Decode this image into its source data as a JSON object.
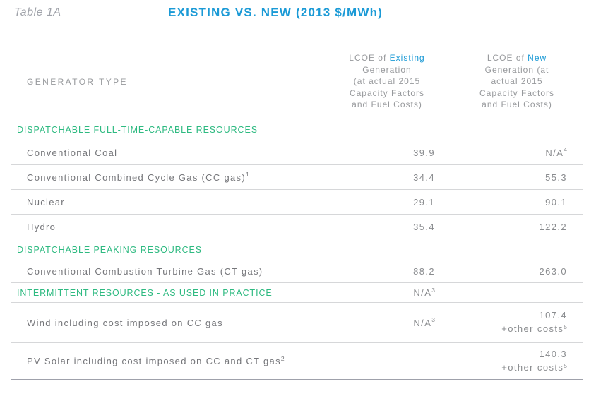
{
  "header": {
    "table_label": "Table 1A",
    "title": "EXISTING VS. NEW (2013 $/MWh)"
  },
  "table": {
    "columns": {
      "generator": "GENERATOR TYPE",
      "existing": {
        "prefix": "LCOE of ",
        "emph": "Existing",
        "rest": "Generation\n(at actual 2015\nCapacity Factors\nand Fuel Costs)"
      },
      "new": {
        "prefix": "LCOE of ",
        "emph": "New",
        "rest": "Generation (at\nactual 2015\nCapacity Factors\nand Fuel Costs)"
      }
    },
    "sections": [
      {
        "label": "DISPATCHABLE FULL-TIME-CAPABLE RESOURCES",
        "rows": [
          {
            "name": "Conventional Coal",
            "existing": "39.9",
            "new": "N/A",
            "new_sup": "4"
          },
          {
            "name": "Conventional Combined Cycle Gas (CC gas)",
            "name_sup": "1",
            "existing": "34.4",
            "new": "55.3"
          },
          {
            "name": "Nuclear",
            "existing": "29.1",
            "new": "90.1"
          },
          {
            "name": "Hydro",
            "existing": "35.4",
            "new": "122.2"
          }
        ]
      },
      {
        "label": "DISPATCHABLE PEAKING RESOURCES",
        "rows": [
          {
            "name": "Conventional Combustion Turbine Gas (CT gas)",
            "existing": "88.2",
            "new": "263.0"
          }
        ]
      },
      {
        "label": "INTERMITTENT RESOURCES - AS USED IN PRACTICE",
        "note": "N/A",
        "note_sup": "3",
        "rows": [
          {
            "name": "Wind including cost imposed on CC gas",
            "existing": "N/A",
            "existing_sup": "3",
            "new": "107.4",
            "new_extra": "+other costs",
            "new_extra_sup": "5"
          },
          {
            "name": "PV Solar including cost imposed on CC and CT gas",
            "name_sup": "2",
            "existing": "",
            "new": "140.3",
            "new_extra": "+other costs",
            "new_extra_sup": "5"
          }
        ]
      }
    ]
  },
  "colors": {
    "accent_blue": "#1b9ad6",
    "accent_green": "#2eba81"
  }
}
